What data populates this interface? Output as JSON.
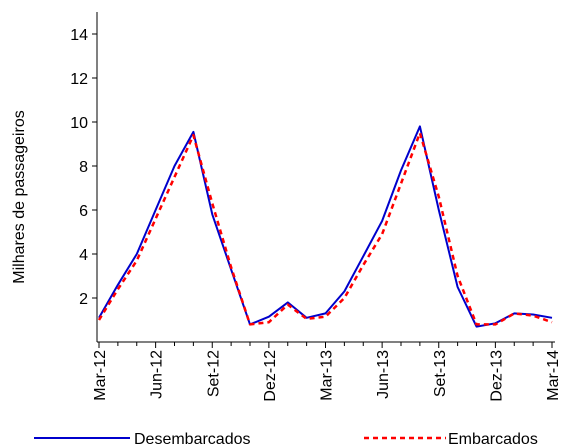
{
  "chart_data": {
    "type": "line",
    "title": "",
    "xlabel": "",
    "ylabel": "Milhares de passageiros",
    "ylim": [
      0,
      15
    ],
    "yticks": [
      2,
      4,
      6,
      8,
      10,
      12,
      14
    ],
    "x": [
      "Mar-12",
      "Abr-12",
      "Mai-12",
      "Jun-12",
      "Jul-12",
      "Ago-12",
      "Set-12",
      "Out-12",
      "Nov-12",
      "Dez-12",
      "Jan-13",
      "Fev-13",
      "Mar-13",
      "Abr-13",
      "Mai-13",
      "Jun-13",
      "Jul-13",
      "Ago-13",
      "Set-13",
      "Out-13",
      "Nov-13",
      "Dez-13",
      "Jan-14",
      "Fev-14",
      "Mar-14"
    ],
    "xtick_labels": [
      "Mar-12",
      "Jun-12",
      "Set-12",
      "Dez-12",
      "Mar-13",
      "Jun-13",
      "Set-13",
      "Dez-13",
      "Mar-14"
    ],
    "series": [
      {
        "name": "Desembarcados",
        "color": "#0000cc",
        "style": "solid",
        "values": [
          1.1,
          2.6,
          4.0,
          6.0,
          8.0,
          9.55,
          5.8,
          3.3,
          0.8,
          1.15,
          1.8,
          1.1,
          1.3,
          2.3,
          3.9,
          5.5,
          7.8,
          9.8,
          6.0,
          2.5,
          0.7,
          0.85,
          1.3,
          1.25,
          1.1
        ]
      },
      {
        "name": "Embarcados",
        "color": "#ff0000",
        "style": "dashed",
        "values": [
          1.0,
          2.4,
          3.7,
          5.6,
          7.5,
          9.4,
          6.3,
          3.4,
          0.8,
          0.9,
          1.7,
          1.05,
          1.15,
          2.0,
          3.5,
          4.9,
          7.2,
          9.5,
          6.6,
          3.0,
          0.8,
          0.8,
          1.3,
          1.2,
          0.9
        ]
      }
    ],
    "legend_position": "bottom",
    "grid": false
  }
}
